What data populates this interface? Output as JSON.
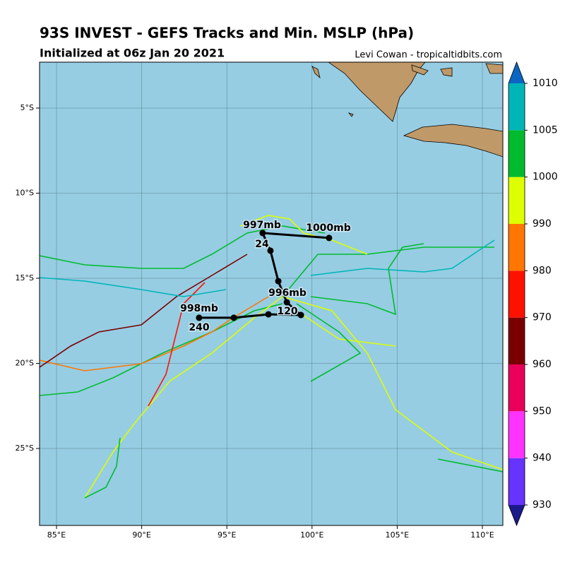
{
  "header": {
    "title": "93S INVEST - GEFS Tracks and Min. MSLP (hPa)",
    "subtitle": "Initialized at 06z Jan 20 2021",
    "credit": "Levi Cowan - tropicaltidbits.com"
  },
  "map": {
    "lon_ticks": [
      {
        "value": 85,
        "label": "85°E"
      },
      {
        "value": 90,
        "label": "90°E"
      },
      {
        "value": 95,
        "label": "95°E"
      },
      {
        "value": 100,
        "label": "100°E"
      },
      {
        "value": 105,
        "label": "105°E"
      },
      {
        "value": 110,
        "label": "110°E"
      }
    ],
    "lat_ticks": [
      {
        "value": -5,
        "label": "5°S"
      },
      {
        "value": -10,
        "label": "10°S"
      },
      {
        "value": -15,
        "label": "15°S"
      },
      {
        "value": -20,
        "label": "20°S"
      },
      {
        "value": -25,
        "label": "25°S"
      }
    ],
    "mean_track": {
      "lon": [
        101.0,
        97.1,
        97.56,
        98.02,
        98.52,
        99.35,
        97.44,
        95.41,
        93.37
      ],
      "lat": [
        -12.63,
        -12.34,
        -13.38,
        -15.17,
        -16.41,
        -17.16,
        -17.12,
        -17.32,
        -17.32
      ]
    },
    "annotations": [
      "1000mb",
      "997mb",
      "24",
      "996mb",
      "120",
      "998mb",
      "240"
    ]
  },
  "colorbar": {
    "levels": [
      930,
      940,
      950,
      960,
      970,
      980,
      990,
      1000,
      1005,
      1010
    ],
    "colors": [
      "#6633ff",
      "#ff33ff",
      "#e8005a",
      "#7a0000",
      "#ff1100",
      "#ff7700",
      "#ddff00",
      "#00bb2d",
      "#00b5b8"
    ]
  }
}
